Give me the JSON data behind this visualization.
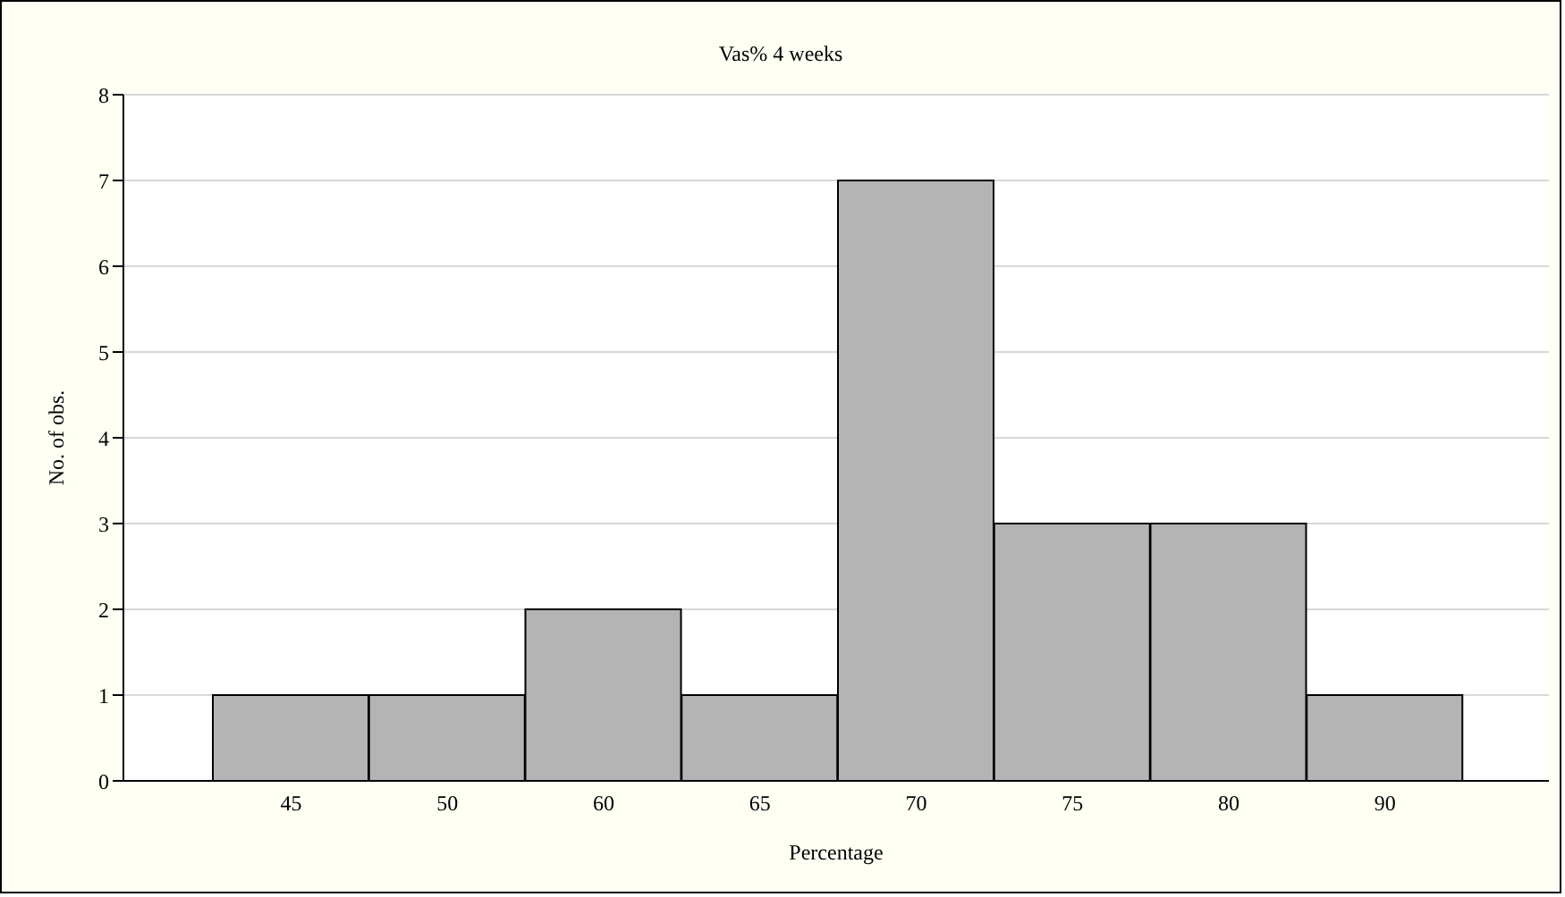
{
  "chart_data": {
    "type": "bar",
    "title": "Vas% 4 weeks",
    "xlabel": "Percentage",
    "ylabel": "No. of obs.",
    "categories": [
      "45",
      "50",
      "60",
      "65",
      "70",
      "75",
      "80",
      "90"
    ],
    "values": [
      1,
      1,
      2,
      1,
      7,
      3,
      3,
      1
    ],
    "color": "#b4b4b4",
    "ylim": [
      0,
      8
    ],
    "yticks": [
      0,
      1,
      2,
      3,
      4,
      5,
      6,
      7,
      8
    ],
    "grid": "y"
  }
}
